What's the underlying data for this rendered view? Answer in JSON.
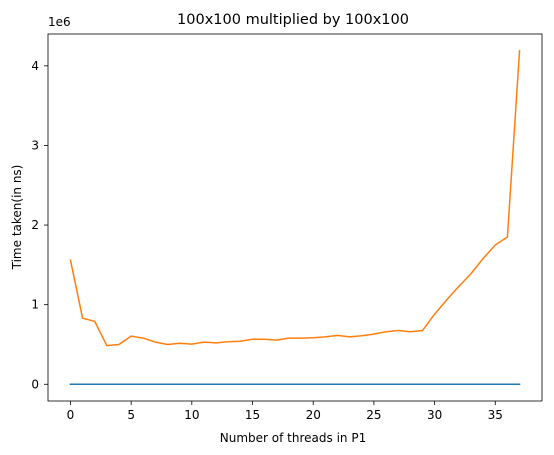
{
  "chart_data": {
    "type": "line",
    "title": "100x100 multiplied by 100x100",
    "xlabel": "Number of threads in P1",
    "ylabel": "Time taken(in ns)",
    "y_offset_label": "1e6",
    "xlim": [
      -1.85,
      38.85
    ],
    "ylim": [
      -210000,
      4400000
    ],
    "x_ticks": [
      0,
      5,
      10,
      15,
      20,
      25,
      30,
      35
    ],
    "y_ticks": [
      0,
      1,
      2,
      3,
      4
    ],
    "y_tick_scale": 1000000,
    "grid": false,
    "x": [
      0,
      1,
      2,
      3,
      4,
      5,
      6,
      7,
      8,
      9,
      10,
      11,
      12,
      13,
      14,
      15,
      16,
      17,
      18,
      19,
      20,
      21,
      22,
      23,
      24,
      25,
      26,
      27,
      28,
      29,
      30,
      31,
      32,
      33,
      34,
      35,
      36,
      37
    ],
    "series": [
      {
        "color": "#1f77b4",
        "values": [
          0,
          0,
          0,
          0,
          0,
          0,
          0,
          0,
          0,
          0,
          0,
          0,
          0,
          0,
          0,
          0,
          0,
          0,
          0,
          0,
          0,
          0,
          0,
          0,
          0,
          0,
          0,
          0,
          0,
          0,
          0,
          0,
          0,
          0,
          0,
          0,
          0,
          0
        ]
      },
      {
        "color": "#ff7f0e",
        "values": [
          1560000,
          830000,
          790000,
          485000,
          500000,
          605000,
          580000,
          530000,
          500000,
          515000,
          505000,
          530000,
          520000,
          535000,
          540000,
          565000,
          565000,
          555000,
          580000,
          580000,
          585000,
          595000,
          615000,
          595000,
          610000,
          630000,
          660000,
          675000,
          660000,
          675000,
          880000,
          1060000,
          1230000,
          1390000,
          1580000,
          1750000,
          1850000,
          4190000
        ]
      }
    ]
  }
}
